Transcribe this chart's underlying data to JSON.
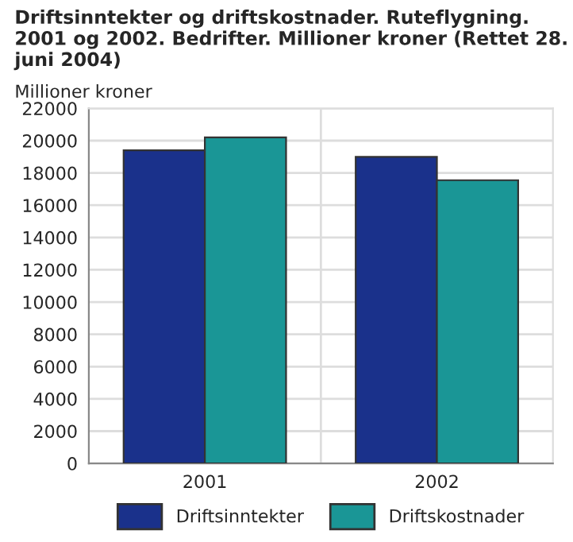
{
  "chart_data": {
    "type": "bar",
    "title": "Driftsinntekter og driftskostnader. Ruteflygning. 2001 og 2002. Bedrifter. Millioner kroner (Rettet 28. juni 2004)",
    "ylabel": "Millioner kroner",
    "categories": [
      "2001",
      "2002"
    ],
    "series": [
      {
        "name": "Driftsinntekter",
        "color": "#1a318b",
        "values": [
          19400,
          19000
        ]
      },
      {
        "name": "Driftskostnader",
        "color": "#1a9696",
        "values": [
          20200,
          17550
        ]
      }
    ],
    "ylim": [
      0,
      22000
    ],
    "yticks": [
      0,
      2000,
      4000,
      6000,
      8000,
      10000,
      12000,
      14000,
      16000,
      18000,
      20000,
      22000
    ],
    "grid": true,
    "legend": "bottom"
  }
}
